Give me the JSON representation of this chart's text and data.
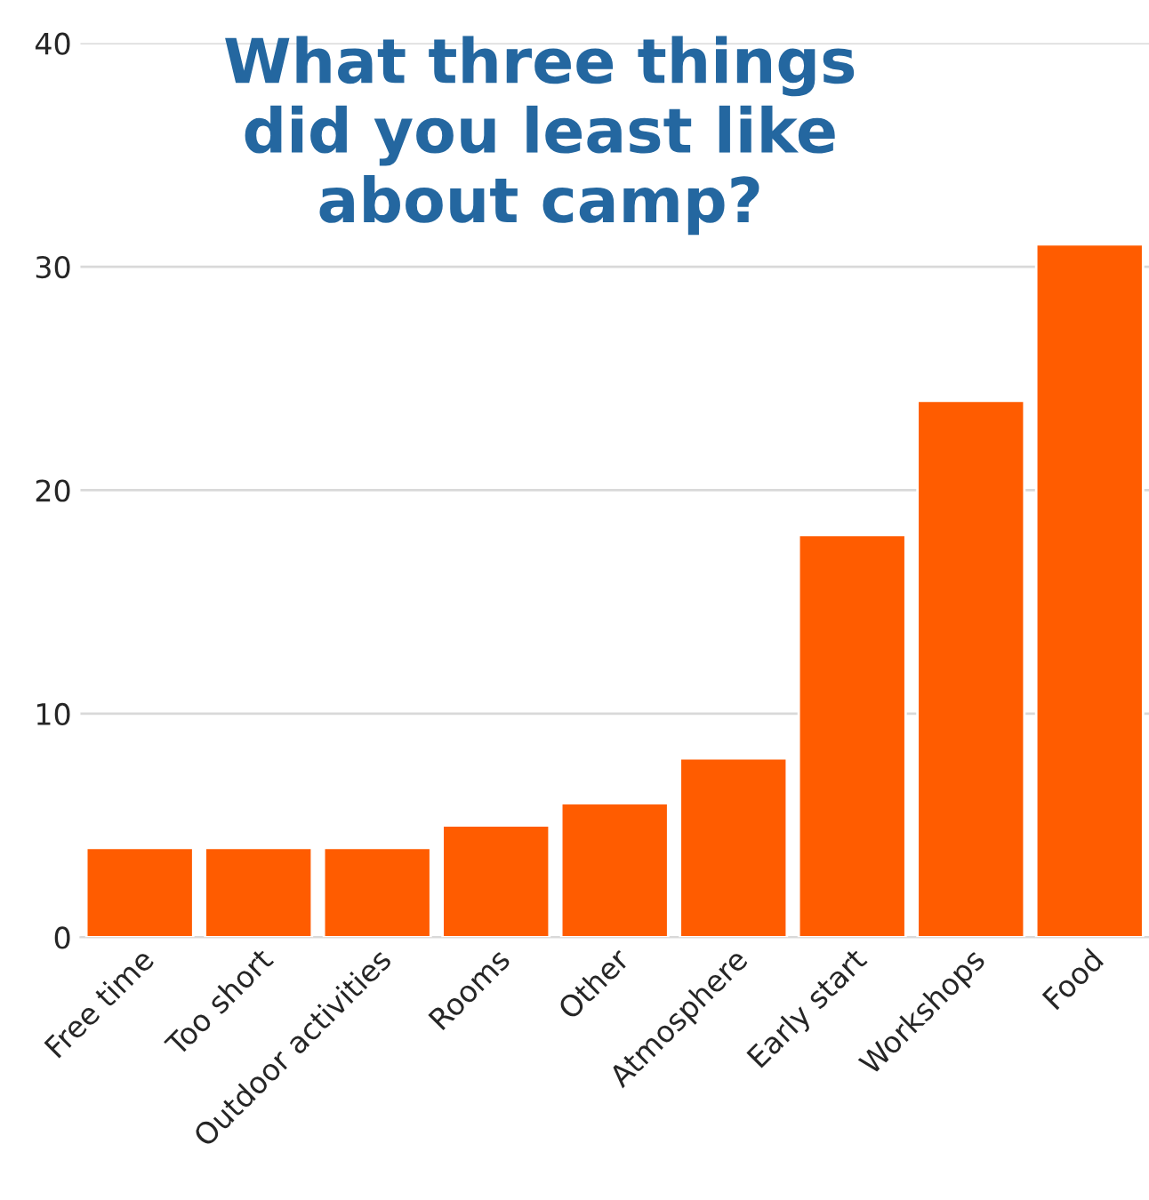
{
  "chart_data": {
    "type": "bar",
    "title": "What three things\ndid you least like\nabout camp?",
    "categories": [
      "Free time",
      "Too short",
      "Outdoor activities",
      "Rooms",
      "Other",
      "Atmosphere",
      "Early start",
      "Workshops",
      "Food"
    ],
    "values": [
      4,
      4,
      4,
      5,
      6,
      8,
      18,
      24,
      31
    ],
    "color": "#ff5c00",
    "ylim": [
      0,
      40
    ],
    "yticks": [
      0,
      10,
      20,
      30,
      40
    ],
    "grid": "y",
    "legend": false
  }
}
